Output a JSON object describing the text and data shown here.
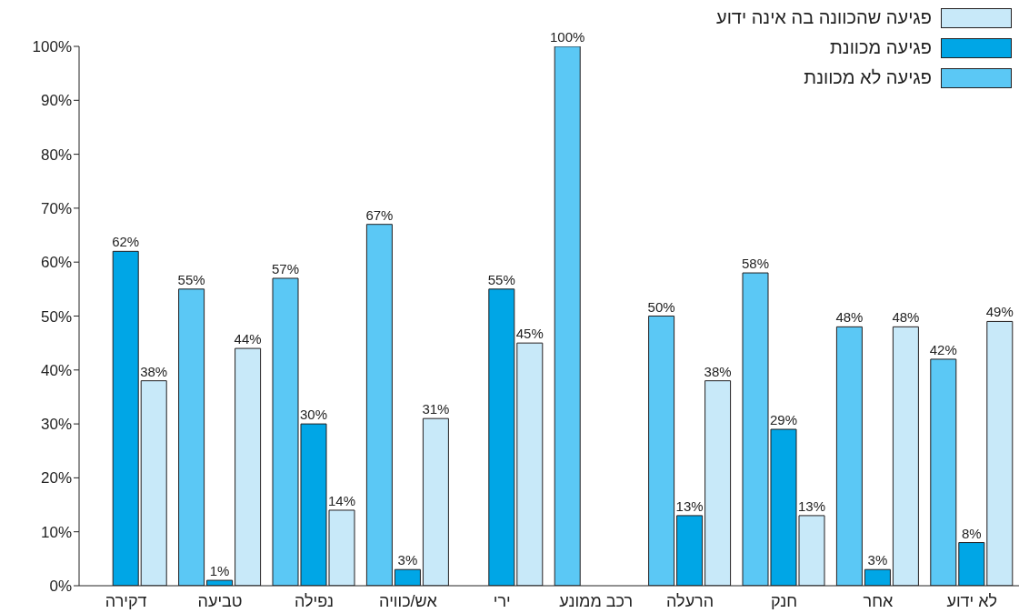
{
  "chart_data": {
    "type": "bar",
    "categories": [
      "דקירה",
      "טביעה",
      "נפילה",
      "אש/כוויה",
      "ירי",
      "רכב ממונע",
      "הרעלה",
      "חנק",
      "אחר",
      "לא ידוע"
    ],
    "series": [
      {
        "name": "פגיעה לא מכוונת",
        "color": "#5bc8f5",
        "values": [
          null,
          55,
          57,
          67,
          null,
          100,
          50,
          58,
          48,
          42
        ],
        "value_labels": [
          null,
          "55%",
          "57%",
          "67%",
          null,
          "100%",
          "50%",
          "58%",
          "48%",
          "42%"
        ]
      },
      {
        "name": "פגיעה מכוונת",
        "color": "#00a6e6",
        "values": [
          62,
          1,
          30,
          3,
          55,
          null,
          13,
          29,
          3,
          8
        ],
        "value_labels": [
          "62%",
          "1%",
          "30%",
          "3%",
          "55%",
          null,
          "13%",
          "29%",
          "3%",
          "8%"
        ]
      },
      {
        "name": "פגיעה שהכוונה בה אינה ידוע",
        "color": "#c8e9f9",
        "values": [
          38,
          44,
          14,
          31,
          45,
          null,
          38,
          13,
          48,
          49
        ],
        "value_labels": [
          "38%",
          "44%",
          "14%",
          "31%",
          "45%",
          null,
          "38%",
          "13%",
          "48%",
          "49%"
        ]
      }
    ],
    "ylim": [
      0,
      100
    ],
    "yticks": [
      {
        "value": 0,
        "label": "0%"
      },
      {
        "value": 10,
        "label": "10%"
      },
      {
        "value": 20,
        "label": "20%"
      },
      {
        "value": 30,
        "label": "30%"
      },
      {
        "value": 40,
        "label": "40%"
      },
      {
        "value": 50,
        "label": "50%"
      },
      {
        "value": 60,
        "label": "60%"
      },
      {
        "value": 70,
        "label": "70%"
      },
      {
        "value": 80,
        "label": "80%"
      },
      {
        "value": 90,
        "label": "90%"
      },
      {
        "value": 100,
        "label": "100%"
      }
    ],
    "grid": false,
    "legend": "top right"
  }
}
